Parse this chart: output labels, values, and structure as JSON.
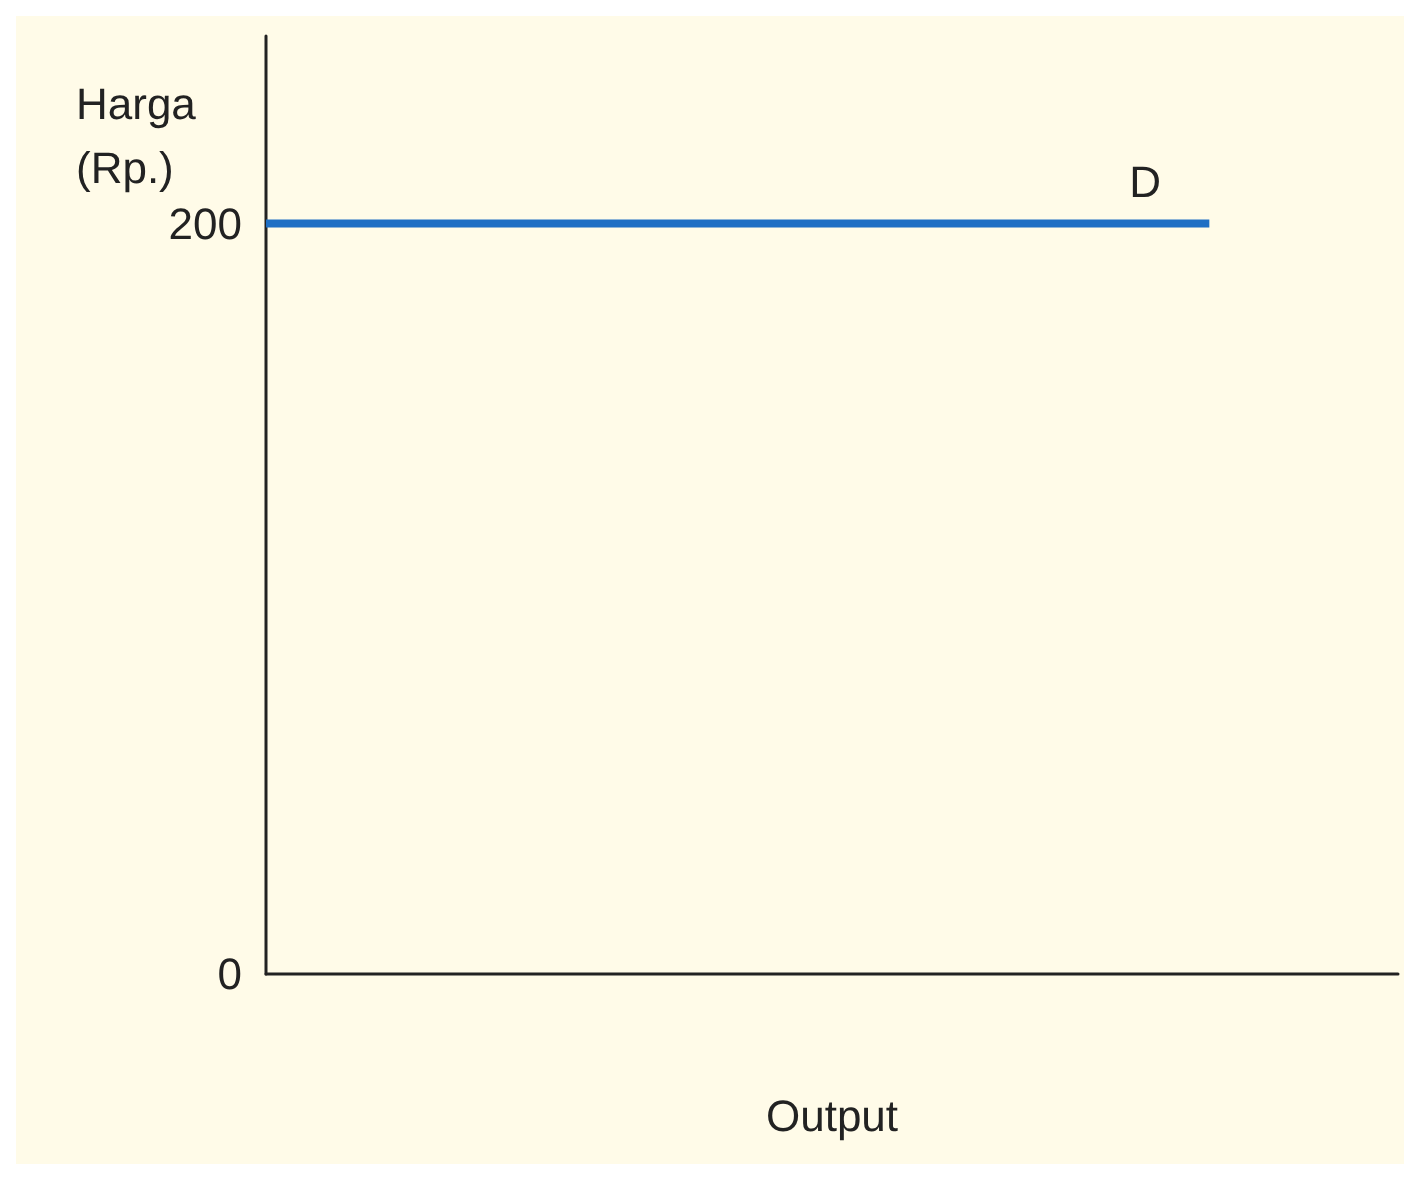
{
  "chart_data": {
    "type": "line",
    "ylabel": "Harga (Rp.)",
    "xlabel": "Output",
    "categories": [
      null,
      null,
      null,
      null,
      null,
      null,
      null
    ],
    "series": [
      {
        "color": "#1f6fc4",
        "values": [
          200,
          200,
          200,
          200,
          200,
          200,
          null
        ]
      }
    ],
    "annotations": [
      {
        "text": "D",
        "y": 200
      }
    ],
    "ylim": [
      0,
      250
    ],
    "yticks": [
      0,
      200
    ],
    "grid": false,
    "marker": "none",
    "line_style": "solid"
  }
}
